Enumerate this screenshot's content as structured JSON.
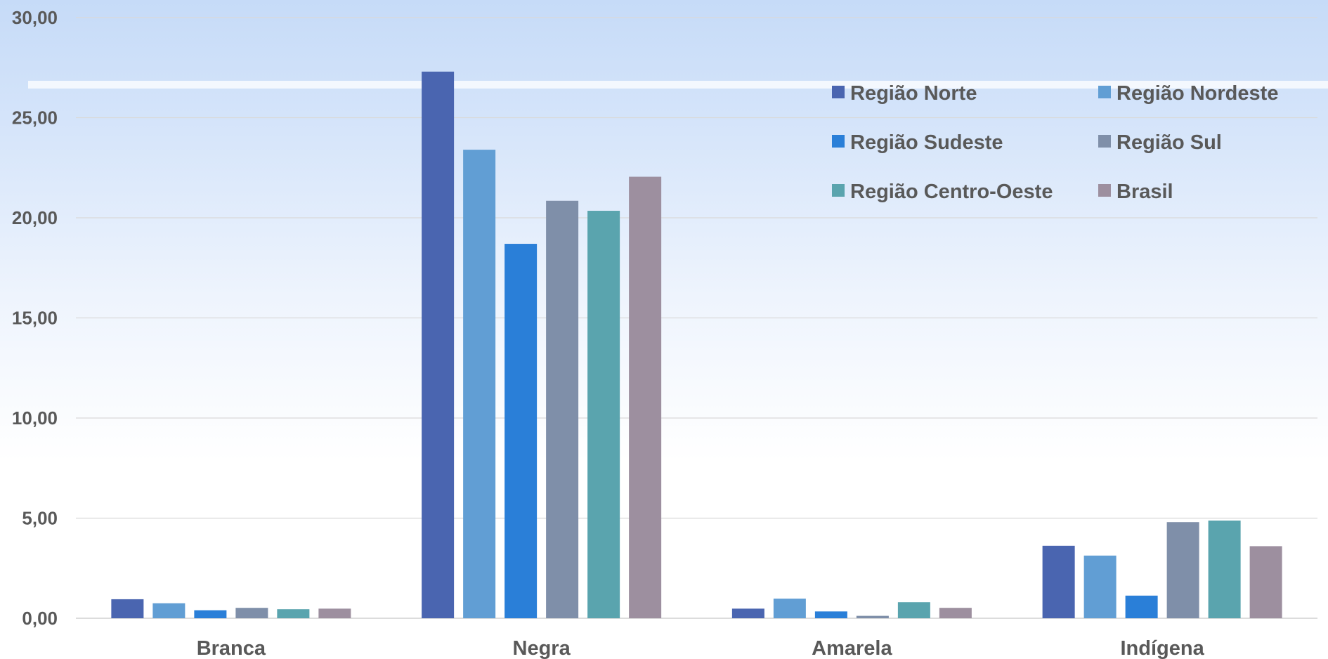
{
  "chart_data": {
    "type": "bar",
    "categories": [
      "Branca",
      "Negra",
      "Amarela",
      "Indígena"
    ],
    "series": [
      {
        "name": "Região Norte",
        "color": "#4a65b0",
        "values": [
          0.95,
          27.3,
          0.48,
          3.62
        ]
      },
      {
        "name": "Região Nordeste",
        "color": "#619ed4",
        "values": [
          0.75,
          23.4,
          0.98,
          3.13
        ]
      },
      {
        "name": "Região Sudeste",
        "color": "#2a7fd8",
        "values": [
          0.4,
          18.7,
          0.34,
          1.13
        ]
      },
      {
        "name": "Região Sul",
        "color": "#7f8fa9",
        "values": [
          0.52,
          20.85,
          0.12,
          4.8
        ]
      },
      {
        "name": "Região Centro-Oeste",
        "color": "#5aa4ae",
        "values": [
          0.45,
          20.35,
          0.8,
          4.88
        ]
      },
      {
        "name": "Brasil",
        "color": "#9d8f9f",
        "values": [
          0.48,
          22.05,
          0.52,
          3.6
        ]
      }
    ],
    "ylim": [
      0,
      30
    ],
    "yticks": [
      "0,00",
      "5,00",
      "10,00",
      "15,00",
      "20,00",
      "25,00",
      "30,00"
    ],
    "grid": true,
    "legend_position": "top-right",
    "title": "",
    "xlabel": "",
    "ylabel": ""
  }
}
